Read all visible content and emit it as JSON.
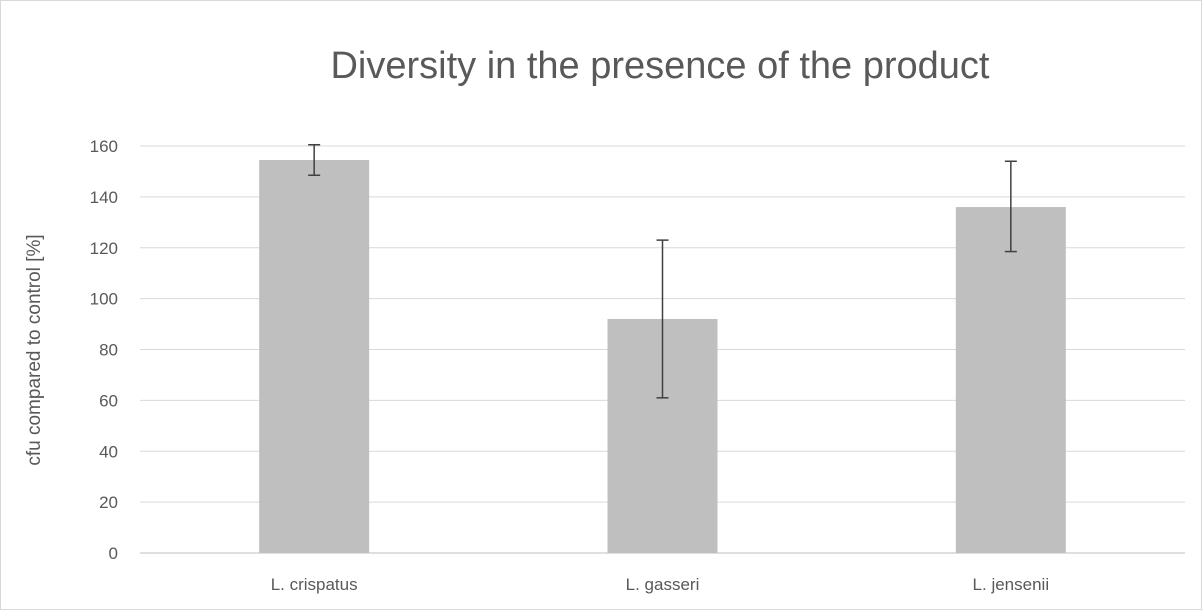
{
  "chart_data": {
    "type": "bar",
    "title": "Diversity in the presence of the product",
    "xlabel": "",
    "ylabel": "cfu compared to control [%]",
    "categories": [
      "L. crispatus",
      "L. gasseri",
      "L. jensenii"
    ],
    "values": [
      154.5,
      92,
      136
    ],
    "error_low": [
      148.5,
      61,
      118.5
    ],
    "error_high": [
      160.5,
      123,
      154
    ],
    "ylim": [
      0,
      160
    ],
    "yticks": [
      0,
      20,
      40,
      60,
      80,
      100,
      120,
      140,
      160
    ],
    "grid": true,
    "legend": "none",
    "colors": {
      "bar": "#bfbfbf",
      "grid": "#d9d9d9",
      "error": "#404040",
      "text": "#595959"
    }
  }
}
